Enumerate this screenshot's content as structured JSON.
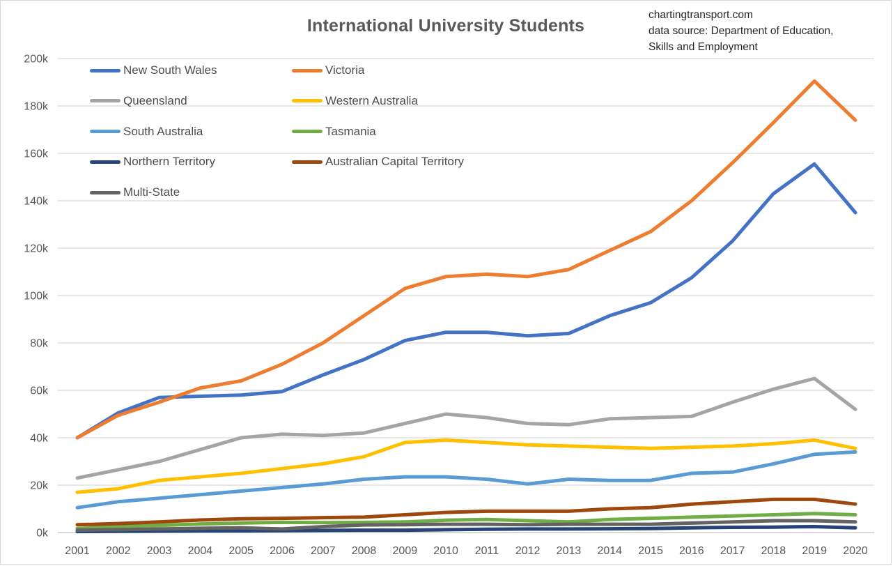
{
  "annotation": {
    "lines": [
      "chartingtransport.com",
      "data source: Department of Education,",
      "Skills and Employment"
    ]
  },
  "chart_data": {
    "type": "line",
    "title": "International University Students",
    "x": [
      2001,
      2002,
      2003,
      2004,
      2005,
      2006,
      2007,
      2008,
      2009,
      2010,
      2011,
      2012,
      2013,
      2014,
      2015,
      2016,
      2017,
      2018,
      2019,
      2020
    ],
    "x_tick_labels": [
      "2001",
      "2002",
      "2003",
      "2004",
      "2005",
      "2006",
      "2007",
      "2008",
      "2009",
      "2010",
      "2011",
      "2012",
      "2013",
      "2014",
      "2015",
      "2016",
      "2017",
      "2018",
      "2019",
      "2020"
    ],
    "y_tick_labels": [
      "0k",
      "20k",
      "40k",
      "60k",
      "80k",
      "100k",
      "120k",
      "140k",
      "160k",
      "180k",
      "200k"
    ],
    "ylim": [
      0,
      200000
    ],
    "y_tick_step": 20000,
    "grid": "horizontal",
    "gridline_color": "#d9d9d9",
    "axis_label_color": "#595959",
    "legend_position": "top-left-inside",
    "series": [
      {
        "name": "New South Wales",
        "color": "#4472C4",
        "values": [
          40000,
          50500,
          57000,
          57500,
          58000,
          59500,
          66500,
          73000,
          81000,
          84500,
          84500,
          83000,
          84000,
          91500,
          97000,
          107500,
          123000,
          143000,
          155500,
          135000
        ]
      },
      {
        "name": "Victoria",
        "color": "#ED7D31",
        "values": [
          40000,
          49500,
          55000,
          61000,
          64000,
          71000,
          80000,
          91500,
          103000,
          108000,
          109000,
          108000,
          111000,
          119000,
          127000,
          140000,
          156000,
          173000,
          190500,
          174000
        ]
      },
      {
        "name": "Queensland",
        "color": "#A5A5A5",
        "values": [
          23000,
          26500,
          30000,
          35000,
          40000,
          41500,
          41000,
          42000,
          46000,
          50000,
          48500,
          46000,
          45500,
          48000,
          48500,
          49000,
          55000,
          60500,
          65000,
          52000
        ]
      },
      {
        "name": "Western Australia",
        "color": "#FFC000",
        "values": [
          17000,
          18500,
          22000,
          23500,
          25000,
          27000,
          29000,
          32000,
          38000,
          39000,
          38000,
          37000,
          36500,
          36000,
          35500,
          36000,
          36500,
          37500,
          39000,
          35500
        ]
      },
      {
        "name": "South Australia",
        "color": "#5B9BD5",
        "values": [
          10500,
          13000,
          14500,
          16000,
          17500,
          19000,
          20500,
          22500,
          23500,
          23500,
          22500,
          20500,
          22500,
          22000,
          22000,
          25000,
          25500,
          29000,
          33000,
          34000
        ]
      },
      {
        "name": "Tasmania",
        "color": "#70AD47",
        "values": [
          1700,
          2600,
          3000,
          3600,
          4000,
          4300,
          4200,
          4300,
          4500,
          5200,
          5500,
          5000,
          4500,
          5500,
          6000,
          6500,
          7000,
          7500,
          8000,
          7500
        ]
      },
      {
        "name": "Northern Territory",
        "color": "#264478",
        "values": [
          400,
          500,
          600,
          700,
          700,
          800,
          900,
          1000,
          1000,
          1200,
          1400,
          1500,
          1500,
          1600,
          1700,
          2000,
          2200,
          2300,
          2500,
          2000
        ]
      },
      {
        "name": "Australian Capital Territory",
        "color": "#9E480E",
        "values": [
          3300,
          3800,
          4500,
          5300,
          5800,
          6000,
          6300,
          6500,
          7500,
          8500,
          9000,
          9000,
          9000,
          10000,
          10500,
          12000,
          13000,
          14000,
          14000,
          12000
        ]
      },
      {
        "name": "Multi-State",
        "color": "#636363",
        "values": [
          1000,
          1200,
          1500,
          1800,
          2000,
          1500,
          2500,
          3200,
          3300,
          3500,
          3500,
          3300,
          3500,
          3500,
          3500,
          4000,
          4500,
          5000,
          5000,
          4500
        ]
      }
    ]
  }
}
